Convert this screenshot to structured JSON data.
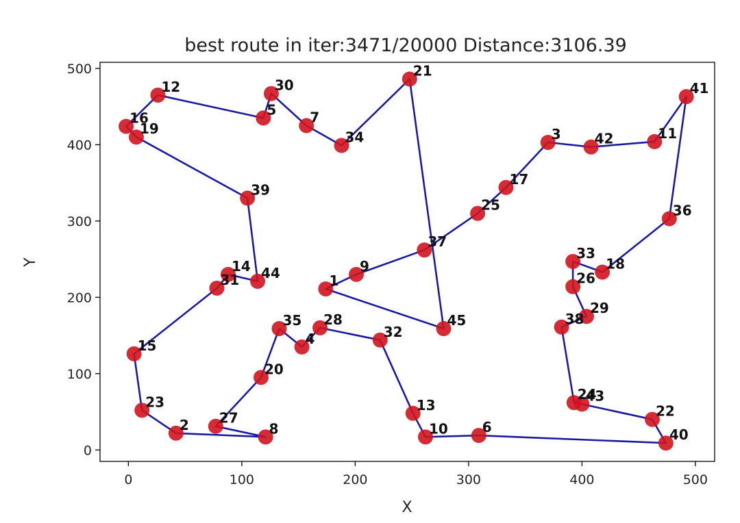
{
  "chart_data": {
    "type": "scatter",
    "title": "best route in iter:3471/20000 Distance:3106.39",
    "xlabel": "X",
    "ylabel": "Y",
    "xlim": [
      -25,
      517
    ],
    "ylim": [
      -15,
      508
    ],
    "xticks": [
      0,
      100,
      200,
      300,
      400,
      500
    ],
    "yticks": [
      0,
      100,
      200,
      300,
      400,
      500
    ],
    "grid": false,
    "colors": {
      "points": "#d0141e",
      "route": "#1a1aa0",
      "frame": "#000000"
    },
    "points": [
      {
        "label": "1",
        "x": 174,
        "y": 211
      },
      {
        "label": "2",
        "x": 42,
        "y": 22
      },
      {
        "label": "3",
        "x": 370,
        "y": 403
      },
      {
        "label": "4",
        "x": 153,
        "y": 135
      },
      {
        "label": "5",
        "x": 119,
        "y": 435
      },
      {
        "label": "6",
        "x": 309,
        "y": 19
      },
      {
        "label": "7",
        "x": 157,
        "y": 425
      },
      {
        "label": "8",
        "x": 121,
        "y": 17
      },
      {
        "label": "9",
        "x": 201,
        "y": 230
      },
      {
        "label": "10",
        "x": 262,
        "y": 17
      },
      {
        "label": "11",
        "x": 464,
        "y": 404
      },
      {
        "label": "12",
        "x": 26,
        "y": 465
      },
      {
        "label": "13",
        "x": 251,
        "y": 48
      },
      {
        "label": "14",
        "x": 88,
        "y": 230
      },
      {
        "label": "15",
        "x": 5,
        "y": 126
      },
      {
        "label": "16",
        "x": -2,
        "y": 424
      },
      {
        "label": "17",
        "x": 333,
        "y": 344
      },
      {
        "label": "18",
        "x": 418,
        "y": 233
      },
      {
        "label": "19",
        "x": 7,
        "y": 410
      },
      {
        "label": "20",
        "x": 117,
        "y": 95
      },
      {
        "label": "21",
        "x": 248,
        "y": 486
      },
      {
        "label": "22",
        "x": 462,
        "y": 40
      },
      {
        "label": "23",
        "x": 12,
        "y": 52
      },
      {
        "label": "24",
        "x": 393,
        "y": 62
      },
      {
        "label": "25",
        "x": 308,
        "y": 310
      },
      {
        "label": "26",
        "x": 392,
        "y": 214
      },
      {
        "label": "27",
        "x": 77,
        "y": 31
      },
      {
        "label": "28",
        "x": 169,
        "y": 160
      },
      {
        "label": "29",
        "x": 404,
        "y": 175
      },
      {
        "label": "30",
        "x": 126,
        "y": 467
      },
      {
        "label": "31",
        "x": 78,
        "y": 212
      },
      {
        "label": "32",
        "x": 222,
        "y": 144
      },
      {
        "label": "33",
        "x": 392,
        "y": 247
      },
      {
        "label": "34",
        "x": 188,
        "y": 399
      },
      {
        "label": "35",
        "x": 133,
        "y": 159
      },
      {
        "label": "36",
        "x": 477,
        "y": 303
      },
      {
        "label": "37",
        "x": 261,
        "y": 262
      },
      {
        "label": "38",
        "x": 382,
        "y": 161
      },
      {
        "label": "39",
        "x": 105,
        "y": 330
      },
      {
        "label": "40",
        "x": 474,
        "y": 9
      },
      {
        "label": "41",
        "x": 492,
        "y": 463
      },
      {
        "label": "42",
        "x": 408,
        "y": 397
      },
      {
        "label": "43",
        "x": 400,
        "y": 60
      },
      {
        "label": "44",
        "x": 114,
        "y": 221
      },
      {
        "label": "45",
        "x": 278,
        "y": 159
      }
    ],
    "route": [
      "12",
      "5",
      "30",
      "7",
      "34",
      "21",
      "45",
      "1",
      "9",
      "37",
      "25",
      "17",
      "3",
      "42",
      "11",
      "41",
      "36",
      "18",
      "33",
      "26",
      "29",
      "38",
      "24",
      "43",
      "22",
      "40",
      "6",
      "10",
      "13",
      "32",
      "28",
      "4",
      "35",
      "20",
      "27",
      "8",
      "2",
      "23",
      "15",
      "31",
      "14",
      "44",
      "39",
      "19",
      "16",
      "12"
    ]
  }
}
